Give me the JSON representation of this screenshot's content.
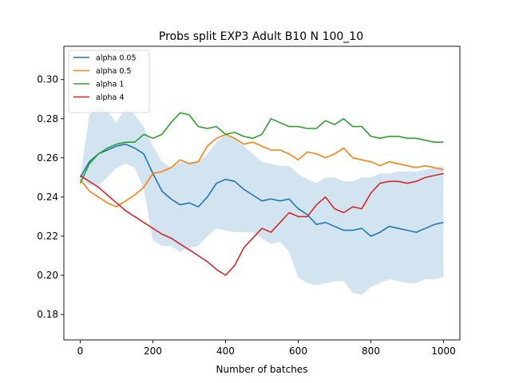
{
  "chart_data": {
    "type": "line",
    "title": "Probs split EXP3 Adult B10 N 100_10",
    "xlabel": "Number of batches",
    "ylabel": "",
    "xlim": [
      -45,
      1045
    ],
    "ylim": [
      0.167,
      0.317
    ],
    "x_ticks": [
      0,
      200,
      400,
      600,
      800,
      1000
    ],
    "x_tick_labels": [
      "0",
      "200",
      "400",
      "600",
      "800",
      "1000"
    ],
    "y_ticks": [
      0.18,
      0.2,
      0.22,
      0.24,
      0.26,
      0.28,
      0.3
    ],
    "y_tick_labels": [
      "0.18",
      "0.20",
      "0.22",
      "0.24",
      "0.26",
      "0.28",
      "0.30"
    ],
    "grid": false,
    "legend_position": "top-left",
    "x": [
      0,
      25,
      50,
      75,
      100,
      125,
      150,
      175,
      200,
      225,
      250,
      275,
      300,
      325,
      350,
      375,
      400,
      425,
      450,
      475,
      500,
      525,
      550,
      575,
      600,
      625,
      650,
      675,
      700,
      725,
      750,
      775,
      800,
      825,
      850,
      875,
      900,
      925,
      950,
      975,
      1000
    ],
    "series": [
      {
        "name": "alpha 0.05",
        "color": "#1f77b4",
        "values": [
          0.25,
          0.258,
          0.262,
          0.264,
          0.266,
          0.267,
          0.265,
          0.262,
          0.252,
          0.243,
          0.239,
          0.236,
          0.237,
          0.235,
          0.24,
          0.247,
          0.249,
          0.248,
          0.244,
          0.241,
          0.238,
          0.239,
          0.238,
          0.239,
          0.234,
          0.231,
          0.226,
          0.227,
          0.225,
          0.223,
          0.223,
          0.224,
          0.22,
          0.222,
          0.225,
          0.224,
          0.223,
          0.222,
          0.224,
          0.226,
          0.227
        ],
        "lower": [
          0.25,
          0.246,
          0.246,
          0.25,
          0.255,
          0.257,
          0.255,
          0.244,
          0.218,
          0.215,
          0.215,
          0.212,
          0.214,
          0.215,
          0.22,
          0.224,
          0.223,
          0.222,
          0.222,
          0.222,
          0.219,
          0.216,
          0.217,
          0.212,
          0.199,
          0.196,
          0.195,
          0.196,
          0.197,
          0.197,
          0.191,
          0.19,
          0.194,
          0.196,
          0.198,
          0.197,
          0.196,
          0.196,
          0.198,
          0.198,
          0.199
        ],
        "upper": [
          0.25,
          0.282,
          0.287,
          0.284,
          0.278,
          0.286,
          0.282,
          0.276,
          0.266,
          0.258,
          0.255,
          0.258,
          0.258,
          0.258,
          0.262,
          0.268,
          0.272,
          0.27,
          0.266,
          0.262,
          0.258,
          0.257,
          0.256,
          0.256,
          0.252,
          0.249,
          0.247,
          0.25,
          0.25,
          0.248,
          0.248,
          0.25,
          0.25,
          0.252,
          0.252,
          0.253,
          0.253,
          0.253,
          0.254,
          0.255,
          0.256
        ]
      },
      {
        "name": "alpha 0.5",
        "color": "#ff7f0e",
        "values": [
          0.249,
          0.243,
          0.24,
          0.237,
          0.235,
          0.238,
          0.241,
          0.245,
          0.252,
          0.253,
          0.255,
          0.259,
          0.257,
          0.258,
          0.266,
          0.27,
          0.272,
          0.27,
          0.267,
          0.268,
          0.266,
          0.264,
          0.264,
          0.262,
          0.259,
          0.263,
          0.262,
          0.26,
          0.262,
          0.265,
          0.26,
          0.259,
          0.258,
          0.256,
          0.258,
          0.257,
          0.256,
          0.255,
          0.256,
          0.255,
          0.254
        ]
      },
      {
        "name": "alpha 1",
        "color": "#2ca02c",
        "values": [
          0.247,
          0.257,
          0.262,
          0.265,
          0.267,
          0.268,
          0.268,
          0.272,
          0.27,
          0.272,
          0.278,
          0.283,
          0.282,
          0.276,
          0.275,
          0.276,
          0.272,
          0.273,
          0.271,
          0.27,
          0.272,
          0.28,
          0.278,
          0.276,
          0.276,
          0.275,
          0.275,
          0.279,
          0.277,
          0.28,
          0.276,
          0.276,
          0.271,
          0.27,
          0.271,
          0.271,
          0.27,
          0.27,
          0.269,
          0.268,
          0.268
        ]
      },
      {
        "name": "alpha 4",
        "color": "#d62728",
        "values": [
          0.251,
          0.248,
          0.245,
          0.241,
          0.237,
          0.233,
          0.23,
          0.227,
          0.224,
          0.221,
          0.219,
          0.216,
          0.213,
          0.21,
          0.207,
          0.203,
          0.2,
          0.205,
          0.214,
          0.219,
          0.224,
          0.222,
          0.227,
          0.232,
          0.23,
          0.23,
          0.236,
          0.24,
          0.234,
          0.232,
          0.235,
          0.234,
          0.242,
          0.247,
          0.248,
          0.248,
          0.247,
          0.248,
          0.25,
          0.251,
          0.252
        ]
      }
    ]
  }
}
